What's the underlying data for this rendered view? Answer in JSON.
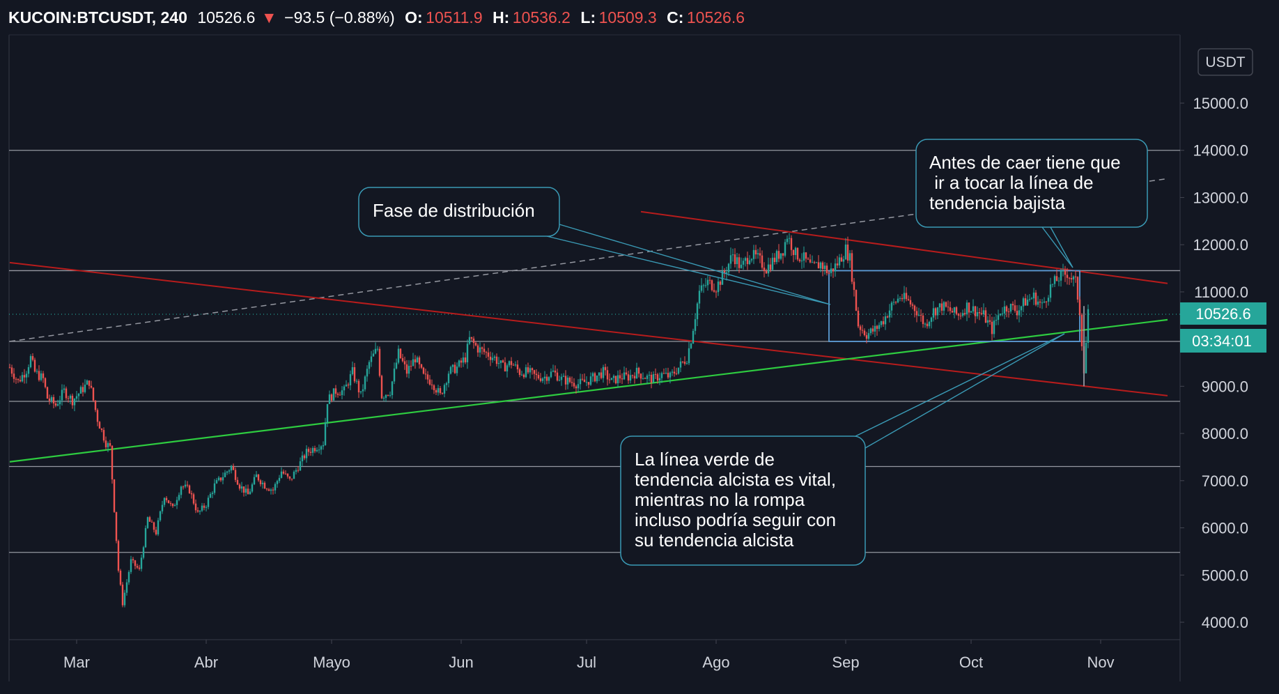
{
  "header": {
    "symbol": "KUCOIN:BTCUSDT, 240",
    "last": "10526.6",
    "change": "−93.5 (−0.88%)",
    "open_label": "O:",
    "open": "10511.9",
    "high_label": "H:",
    "high": "10536.2",
    "low_label": "L:",
    "low": "10509.3",
    "close_label": "C:",
    "close": "10526.6"
  },
  "currency_badge": "USDT",
  "colors": {
    "background": "#131722",
    "up": "#26a69a",
    "down": "#ef5350",
    "uptrend": "#2ecc40",
    "downtrend": "#b71c1c",
    "callout_border": "#3a9ab5",
    "price_badge": "#26a69a"
  },
  "chart_data": {
    "type": "candlestick",
    "symbol": "KUCOIN:BTCUSDT",
    "interval": "240",
    "ylim": [
      3700,
      16300
    ],
    "y_ticks": [
      "15000.0",
      "14000.0",
      "13000.0",
      "12000.0",
      "11000.0",
      "9000.0",
      "8000.0",
      "7000.0",
      "6000.0",
      "5000.0",
      "4000.0"
    ],
    "x_ticks": [
      {
        "label": "Mar",
        "day": 0
      },
      {
        "label": "Abr",
        "day": 31
      },
      {
        "label": "Mayo",
        "day": 61
      },
      {
        "label": "Jun",
        "day": 92
      },
      {
        "label": "Jul",
        "day": 122
      },
      {
        "label": "Ago",
        "day": 153
      },
      {
        "label": "Sep",
        "day": 184
      },
      {
        "label": "Oct",
        "day": 214
      },
      {
        "label": "Nov",
        "day": 245
      }
    ],
    "price_path": [
      [
        -16,
        9400
      ],
      [
        -14,
        9100
      ],
      [
        -12,
        9350
      ],
      [
        -11,
        9600
      ],
      [
        -10,
        9300
      ],
      [
        -8,
        9150
      ],
      [
        -7,
        8750
      ],
      [
        -5,
        8600
      ],
      [
        -3,
        8900
      ],
      [
        -1,
        8700
      ],
      [
        1,
        8900
      ],
      [
        3,
        9100
      ],
      [
        5,
        8300
      ],
      [
        7,
        7800
      ],
      [
        8,
        7700
      ],
      [
        10,
        5100
      ],
      [
        11,
        4400
      ],
      [
        13,
        5300
      ],
      [
        15,
        5100
      ],
      [
        17,
        6200
      ],
      [
        19,
        5900
      ],
      [
        21,
        6700
      ],
      [
        23,
        6400
      ],
      [
        25,
        6900
      ],
      [
        27,
        6800
      ],
      [
        29,
        6300
      ],
      [
        31,
        6500
      ],
      [
        33,
        6900
      ],
      [
        35,
        7100
      ],
      [
        37,
        7300
      ],
      [
        39,
        6900
      ],
      [
        41,
        6700
      ],
      [
        43,
        7100
      ],
      [
        45,
        6900
      ],
      [
        47,
        6800
      ],
      [
        49,
        7200
      ],
      [
        51,
        7000
      ],
      [
        53,
        7300
      ],
      [
        55,
        7600
      ],
      [
        57,
        7700
      ],
      [
        59,
        7800
      ],
      [
        60,
        8700
      ],
      [
        62,
        8900
      ],
      [
        64,
        8900
      ],
      [
        66,
        9300
      ],
      [
        68,
        8800
      ],
      [
        70,
        9500
      ],
      [
        72,
        9800
      ],
      [
        73,
        8800
      ],
      [
        75,
        8900
      ],
      [
        77,
        9700
      ],
      [
        79,
        9300
      ],
      [
        81,
        9600
      ],
      [
        83,
        9200
      ],
      [
        85,
        9100
      ],
      [
        87,
        8800
      ],
      [
        89,
        9300
      ],
      [
        91,
        9400
      ],
      [
        93,
        9600
      ],
      [
        94,
        10000
      ],
      [
        96,
        9800
      ],
      [
        98,
        9700
      ],
      [
        100,
        9600
      ],
      [
        102,
        9400
      ],
      [
        104,
        9500
      ],
      [
        106,
        9300
      ],
      [
        108,
        9300
      ],
      [
        110,
        9200
      ],
      [
        112,
        9200
      ],
      [
        114,
        9300
      ],
      [
        116,
        9150
      ],
      [
        118,
        9100
      ],
      [
        120,
        9050
      ],
      [
        122,
        9100
      ],
      [
        124,
        9200
      ],
      [
        126,
        9300
      ],
      [
        128,
        9100
      ],
      [
        130,
        9200
      ],
      [
        132,
        9200
      ],
      [
        134,
        9300
      ],
      [
        136,
        9200
      ],
      [
        138,
        9150
      ],
      [
        140,
        9250
      ],
      [
        142,
        9200
      ],
      [
        144,
        9400
      ],
      [
        146,
        9600
      ],
      [
        147,
        10000
      ],
      [
        149,
        11000
      ],
      [
        151,
        11200
      ],
      [
        153,
        11100
      ],
      [
        155,
        11400
      ],
      [
        157,
        11800
      ],
      [
        159,
        11500
      ],
      [
        161,
        11800
      ],
      [
        163,
        11700
      ],
      [
        165,
        11500
      ],
      [
        167,
        11700
      ],
      [
        169,
        11900
      ],
      [
        170,
        12200
      ],
      [
        172,
        11800
      ],
      [
        174,
        11700
      ],
      [
        176,
        11500
      ],
      [
        178,
        11600
      ],
      [
        180,
        11400
      ],
      [
        182,
        11600
      ],
      [
        184,
        11900
      ],
      [
        185,
        11700
      ],
      [
        187,
        10300
      ],
      [
        189,
        10100
      ],
      [
        191,
        10200
      ],
      [
        193,
        10400
      ],
      [
        195,
        10700
      ],
      [
        197,
        10900
      ],
      [
        199,
        10800
      ],
      [
        201,
        10600
      ],
      [
        203,
        10300
      ],
      [
        205,
        10600
      ],
      [
        207,
        10700
      ],
      [
        209,
        10600
      ],
      [
        211,
        10500
      ],
      [
        213,
        10700
      ],
      [
        215,
        10600
      ],
      [
        217,
        10500
      ],
      [
        219,
        10200
      ],
      [
        221,
        10600
      ],
      [
        223,
        10700
      ],
      [
        225,
        10600
      ],
      [
        227,
        10800
      ],
      [
        229,
        10900
      ],
      [
        231,
        10700
      ],
      [
        233,
        11100
      ],
      [
        235,
        11300
      ],
      [
        237,
        11400
      ],
      [
        239,
        11200
      ],
      [
        240,
        10600
      ],
      [
        241,
        9300
      ],
      [
        242,
        10526.6
      ]
    ],
    "horizontal_levels": [
      14000,
      11450,
      9950,
      8680,
      7300,
      5480
    ],
    "uptrend_line": {
      "from": [
        -16,
        7400
      ],
      "to": [
        261,
        10410
      ]
    },
    "downtrend_line_long": {
      "from": [
        -16,
        11620
      ],
      "to": [
        261,
        8800
      ]
    },
    "downtrend_line_short": {
      "from": [
        135,
        12700
      ],
      "to": [
        261,
        11180
      ]
    },
    "dashed_channel_line": {
      "from": [
        -16,
        9950
      ],
      "to": [
        261,
        13400
      ]
    },
    "range_box": {
      "day_start": 180,
      "day_end": 240,
      "price_top": 11450,
      "price_bottom": 9950
    },
    "last_price": {
      "value": "10526.6",
      "countdown": "03:34:01"
    },
    "annotations": [
      {
        "name": "distribution-note",
        "lines": [
          "Fase de distribución"
        ]
      },
      {
        "name": "downtrend-note",
        "lines": [
          "Antes de caer tiene que",
          " ir a tocar la línea de",
          "tendencia bajista"
        ]
      },
      {
        "name": "uptrend-note",
        "lines": [
          "La línea verde de",
          "tendencia alcista es vital,",
          "mientras no la rompa",
          "incluso podría seguir con",
          "su tendencia alcista"
        ]
      }
    ]
  }
}
